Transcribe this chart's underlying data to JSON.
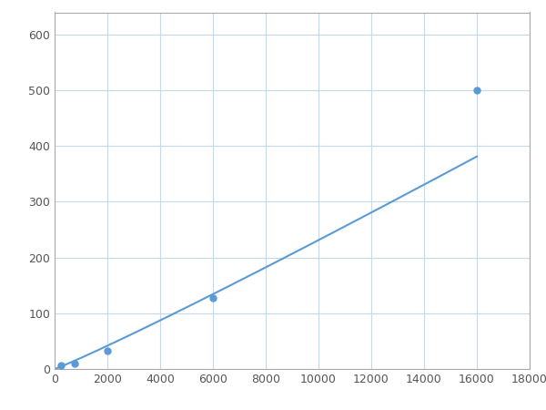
{
  "x_data": [
    250,
    750,
    2000,
    6000,
    16000
  ],
  "y_data": [
    7,
    10,
    32,
    128,
    500
  ],
  "line_color": "#5b9bd5",
  "marker_color": "#5b9bd5",
  "marker_size": 5,
  "line_width": 1.5,
  "xlim": [
    0,
    18000
  ],
  "ylim": [
    0,
    640
  ],
  "xticks": [
    0,
    2000,
    4000,
    6000,
    8000,
    10000,
    12000,
    14000,
    16000,
    18000
  ],
  "yticks": [
    0,
    100,
    200,
    300,
    400,
    500,
    600
  ],
  "grid_color": "#c8d8e8",
  "background_color": "#ffffff",
  "figsize": [
    6.0,
    4.5
  ],
  "dpi": 100
}
